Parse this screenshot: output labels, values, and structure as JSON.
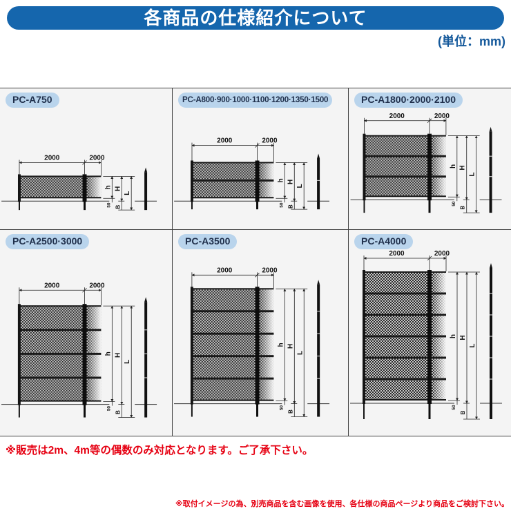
{
  "header": {
    "title": "各商品の仕様紹介について",
    "units_note": "(単位：mm)"
  },
  "theme": {
    "bar_blue": "#1566ad",
    "units_blue": "#15599b",
    "badge_bg": "#b9d4ec",
    "badge_text": "#20304c",
    "cell_bg": "#f4f4f4",
    "grid_line": "#3f3f3f",
    "notice_red": "#e60012",
    "mesh_dark": "#2b2b2b",
    "mesh_light": "#c6c6c6"
  },
  "cells": [
    {
      "label": "PC-A750",
      "sections": 1,
      "diagram": {
        "top_dims": [
          "2000",
          "2000"
        ],
        "side_dims": [
          "h",
          "H",
          "L"
        ],
        "bottom_dims": [
          "50",
          "B"
        ]
      }
    },
    {
      "label": "PC-A800·900·1000·1100·1200·1350·1500",
      "sections": 2,
      "diagram": {
        "top_dims": [
          "2000",
          "2000"
        ],
        "side_dims": [
          "h",
          "H",
          "L"
        ],
        "bottom_dims": [
          "50",
          "B"
        ]
      }
    },
    {
      "label": "PC-A1800·2000·2100",
      "sections": 3,
      "diagram": {
        "top_dims": [
          "2000",
          "2000"
        ],
        "side_dims": [
          "h",
          "H",
          "L"
        ],
        "bottom_dims": [
          "50",
          "B"
        ]
      }
    },
    {
      "label": "PC-A2500·3000",
      "sections": 4,
      "diagram": {
        "top_dims": [
          "2000",
          "2000"
        ],
        "side_dims": [
          "h",
          "H",
          "L"
        ],
        "bottom_dims": [
          "50",
          "B"
        ]
      }
    },
    {
      "label": "PC-A3500",
      "sections": 5,
      "diagram": {
        "top_dims": [
          "2000",
          "2000"
        ],
        "side_dims": [
          "h",
          "H",
          "L"
        ],
        "bottom_dims": [
          "50",
          "B"
        ]
      }
    },
    {
      "label": "PC-A4000",
      "sections": 6,
      "diagram": {
        "top_dims": [
          "2000",
          "2000"
        ],
        "side_dims": [
          "h",
          "H",
          "L"
        ],
        "bottom_dims": [
          "50",
          "B"
        ]
      }
    }
  ],
  "notices": {
    "even_length_note": "※販売は2m、4m等の偶数のみ対応となります。ご了承下さい。",
    "image_disclaimer": "※取付イメージの為、別売商品を含む画像を使用、各仕様の商品ページより商品をご検討下さい。"
  }
}
